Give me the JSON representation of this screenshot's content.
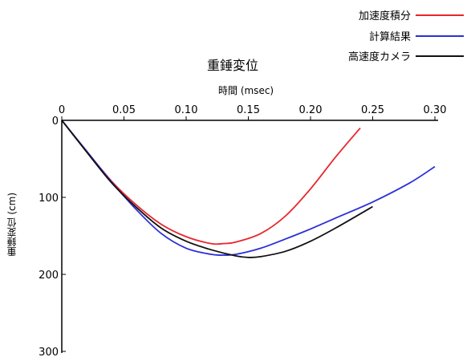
{
  "chart_data": {
    "type": "line",
    "title": "重錘変位",
    "xlabel": "時間 (msec)",
    "ylabel": "重錘変位 (cm)",
    "xlim": [
      0,
      0.3
    ],
    "ylim": [
      0,
      300
    ],
    "y_inverted": true,
    "x_ticks": [
      0,
      0.05,
      0.1,
      0.15,
      0.2,
      0.25,
      0.3
    ],
    "x_tick_labels": [
      "0",
      "0.05",
      "0.10",
      "0.15",
      "0.20",
      "0.25",
      "0.30"
    ],
    "y_ticks": [
      0,
      100,
      200,
      300
    ],
    "y_tick_labels": [
      "0",
      "100",
      "200",
      "300"
    ],
    "legend_position": "top-right",
    "grid": false,
    "series": [
      {
        "name": "加速度積分",
        "color": "#e8262d",
        "x": [
          0,
          0.02,
          0.04,
          0.06,
          0.08,
          0.1,
          0.12,
          0.13,
          0.14,
          0.16,
          0.18,
          0.2,
          0.22,
          0.24
        ],
        "y": [
          0,
          40,
          79,
          110,
          135,
          151,
          160,
          160,
          158,
          147,
          124,
          89,
          48,
          10
        ]
      },
      {
        "name": "計算結果",
        "color": "#2b2fd8",
        "x": [
          0,
          0.02,
          0.04,
          0.06,
          0.08,
          0.1,
          0.12,
          0.13,
          0.14,
          0.16,
          0.18,
          0.2,
          0.22,
          0.25,
          0.28,
          0.3
        ],
        "y": [
          0,
          40,
          80,
          116,
          147,
          166,
          174,
          175,
          174,
          166,
          154,
          141,
          127,
          106,
          81,
          60
        ]
      },
      {
        "name": "高速度カメラ",
        "color": "#111111",
        "x": [
          0,
          0.02,
          0.04,
          0.06,
          0.08,
          0.1,
          0.12,
          0.14,
          0.15,
          0.16,
          0.18,
          0.2,
          0.22,
          0.25
        ],
        "y": [
          0,
          41,
          81,
          113,
          140,
          157,
          168,
          176,
          178,
          177,
          170,
          157,
          140,
          112
        ]
      }
    ]
  }
}
